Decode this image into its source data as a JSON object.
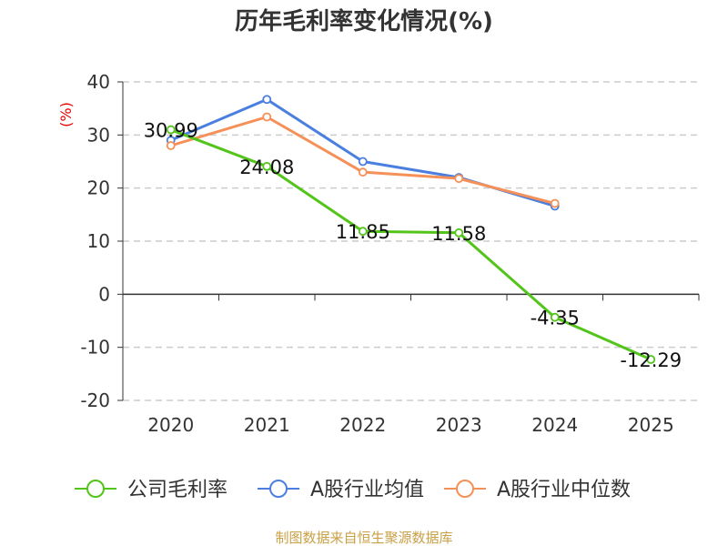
{
  "chart_data": {
    "type": "line",
    "title": "历年毛利率变化情况(%)",
    "ylabel": "(%)",
    "xlabel": "",
    "categories": [
      "2020",
      "2021",
      "2022",
      "2023",
      "2024",
      "2025"
    ],
    "ylim": [
      -20,
      40
    ],
    "yticks": [
      40,
      30,
      20,
      10,
      0,
      -10,
      -20
    ],
    "grid": true,
    "legend_position": "bottom",
    "series": [
      {
        "name": "公司毛利率",
        "color": "#52c41a",
        "values": [
          30.99,
          24.08,
          11.85,
          11.58,
          -4.35,
          -12.29
        ],
        "labels": [
          "30.99",
          "24.08",
          "11.85",
          "11.58",
          "-4.35",
          "-12.29"
        ]
      },
      {
        "name": "A股行业均值",
        "color": "#4a7fe0",
        "values": [
          29.0,
          36.7,
          25.0,
          22.0,
          16.6,
          null
        ]
      },
      {
        "name": "A股行业中位数",
        "color": "#f59058",
        "values": [
          28.0,
          33.4,
          23.0,
          21.8,
          17.1,
          null
        ]
      }
    ]
  },
  "source": "制图数据来自恒生聚源数据库"
}
